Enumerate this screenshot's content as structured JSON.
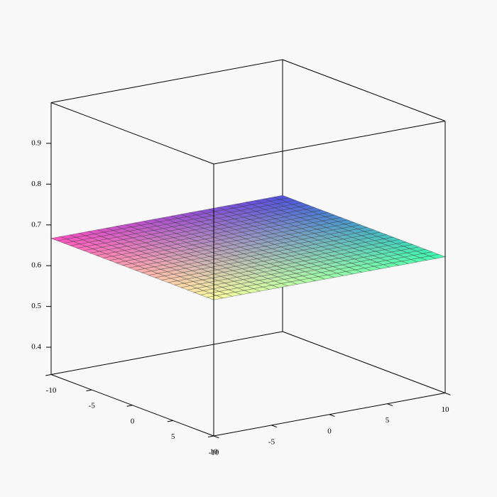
{
  "chart_data": {
    "type": "surface",
    "z": 0.667,
    "xlim": [
      -10,
      10
    ],
    "xticks": [
      -10,
      -5,
      0,
      5,
      10
    ],
    "ylim": [
      -10,
      10
    ],
    "yticks": [
      -10,
      -5,
      0,
      5,
      10
    ],
    "zlim": [
      0.333,
      1.0
    ],
    "zticks": [
      0.4,
      0.5,
      0.6,
      0.7,
      0.8,
      0.9
    ]
  }
}
